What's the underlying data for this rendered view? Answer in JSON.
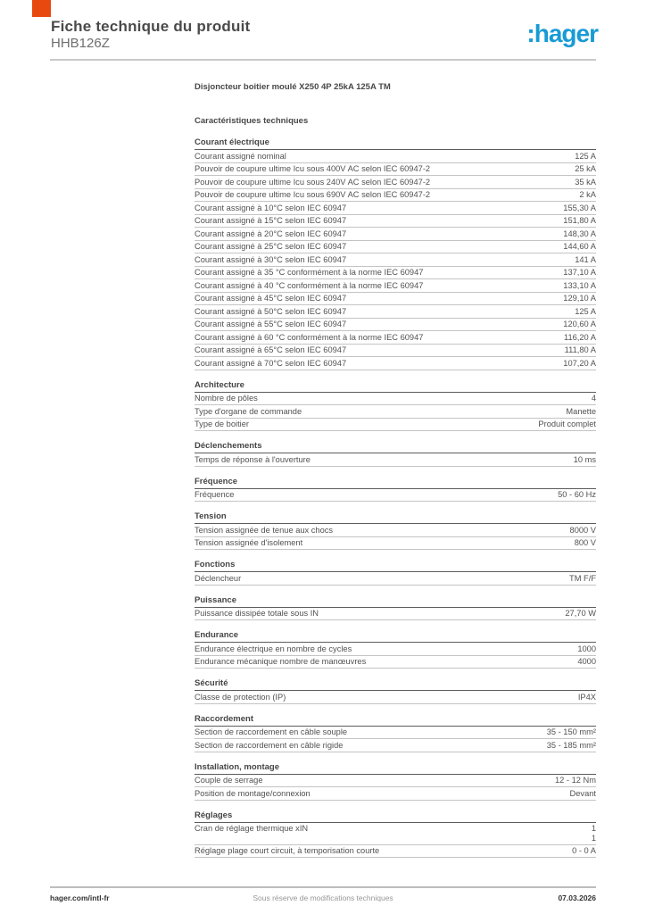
{
  "header": {
    "title": "Fiche technique du produit",
    "reference": "HHB126Z",
    "brand": ":hager",
    "accent_color": "#e8490f",
    "brand_color": "#189bd5"
  },
  "intro": {
    "product_description": "Disjoncteur boitier moulé X250 4P 25kA 125A TM",
    "characteristics_heading": "Caractéristiques techniques"
  },
  "sections": [
    {
      "title": "Courant électrique",
      "rows": [
        {
          "label": "Courant assigné nominal",
          "value": "125 A"
        },
        {
          "label": "Pouvoir de coupure ultime Icu sous 400V AC selon IEC 60947-2",
          "value": "25 kA"
        },
        {
          "label": "Pouvoir de coupure ultime Icu sous 240V AC selon IEC 60947-2",
          "value": "35 kA"
        },
        {
          "label": "Pouvoir de coupure ultime Icu sous 690V AC selon IEC 60947-2",
          "value": "2 kA"
        },
        {
          "label": "Courant assigné à 10°C selon IEC 60947",
          "value": "155,30 A"
        },
        {
          "label": "Courant assigné à 15°C selon IEC 60947",
          "value": "151,80 A"
        },
        {
          "label": "Courant assigné à 20°C selon IEC 60947",
          "value": "148,30 A"
        },
        {
          "label": "Courant assigné à 25°C selon IEC 60947",
          "value": "144,60 A"
        },
        {
          "label": "Courant assigné à 30°C selon IEC 60947",
          "value": "141 A"
        },
        {
          "label": "Courant assigné à 35 °C conformément à la norme IEC 60947",
          "value": "137,10 A"
        },
        {
          "label": "Courant assigné à 40 °C conformément à la norme IEC 60947",
          "value": "133,10 A"
        },
        {
          "label": "Courant assigné à 45°C selon IEC 60947",
          "value": "129,10 A"
        },
        {
          "label": "Courant assigné à 50°C selon IEC 60947",
          "value": "125 A"
        },
        {
          "label": "Courant assigné à 55°C selon IEC 60947",
          "value": "120,60 A"
        },
        {
          "label": "Courant assigné à 60 °C conformément à la norme IEC 60947",
          "value": "116,20 A"
        },
        {
          "label": "Courant assigné à 65°C selon IEC 60947",
          "value": "111,80 A"
        },
        {
          "label": "Courant assigné à 70°C selon IEC 60947",
          "value": "107,20 A"
        }
      ]
    },
    {
      "title": "Architecture",
      "rows": [
        {
          "label": "Nombre de pôles",
          "value": "4"
        },
        {
          "label": "Type d'organe de commande",
          "value": "Manette"
        },
        {
          "label": "Type de boitier",
          "value": "Produit complet"
        }
      ]
    },
    {
      "title": "Déclenchements",
      "rows": [
        {
          "label": "Temps de réponse à l'ouverture",
          "value": "10 ms"
        }
      ]
    },
    {
      "title": "Fréquence",
      "rows": [
        {
          "label": "Fréquence",
          "value": "50 - 60 Hz"
        }
      ]
    },
    {
      "title": "Tension",
      "rows": [
        {
          "label": "Tension assignée de tenue aux chocs",
          "value": "8000 V"
        },
        {
          "label": "Tension assignée d'isolement",
          "value": "800 V"
        }
      ]
    },
    {
      "title": "Fonctions",
      "rows": [
        {
          "label": "Déclencheur",
          "value": "TM F/F"
        }
      ]
    },
    {
      "title": "Puissance",
      "rows": [
        {
          "label": "Puissance dissipée totale sous IN",
          "value": "27,70 W"
        }
      ]
    },
    {
      "title": "Endurance",
      "rows": [
        {
          "label": "Endurance électrique en nombre de cycles",
          "value": "1000"
        },
        {
          "label": "Endurance mécanique nombre de manœuvres",
          "value": "4000"
        }
      ]
    },
    {
      "title": "Sécurité",
      "rows": [
        {
          "label": "Classe de protection (IP)",
          "value": "IP4X"
        }
      ]
    },
    {
      "title": "Raccordement",
      "rows": [
        {
          "label": "Section de raccordement en câble souple",
          "value": "35 - 150 mm²"
        },
        {
          "label": "Section de raccordement en câble rigide",
          "value": "35 - 185 mm²"
        }
      ]
    },
    {
      "title": "Installation, montage",
      "rows": [
        {
          "label": "Couple de serrage",
          "value": "12 - 12 Nm"
        },
        {
          "label": "Position de montage/connexion",
          "value": "Devant"
        }
      ]
    },
    {
      "title": "Réglages",
      "rows": [
        {
          "label": "Cran de réglage thermique xIN",
          "value": "1\n1"
        },
        {
          "label": "Réglage plage court circuit, à temporisation courte",
          "value": "0 - 0 A"
        }
      ]
    }
  ],
  "footer": {
    "website": "hager.com/intl-fr",
    "disclaimer": "Sous réserve de modifications techniques",
    "date": "07.03.2026"
  }
}
